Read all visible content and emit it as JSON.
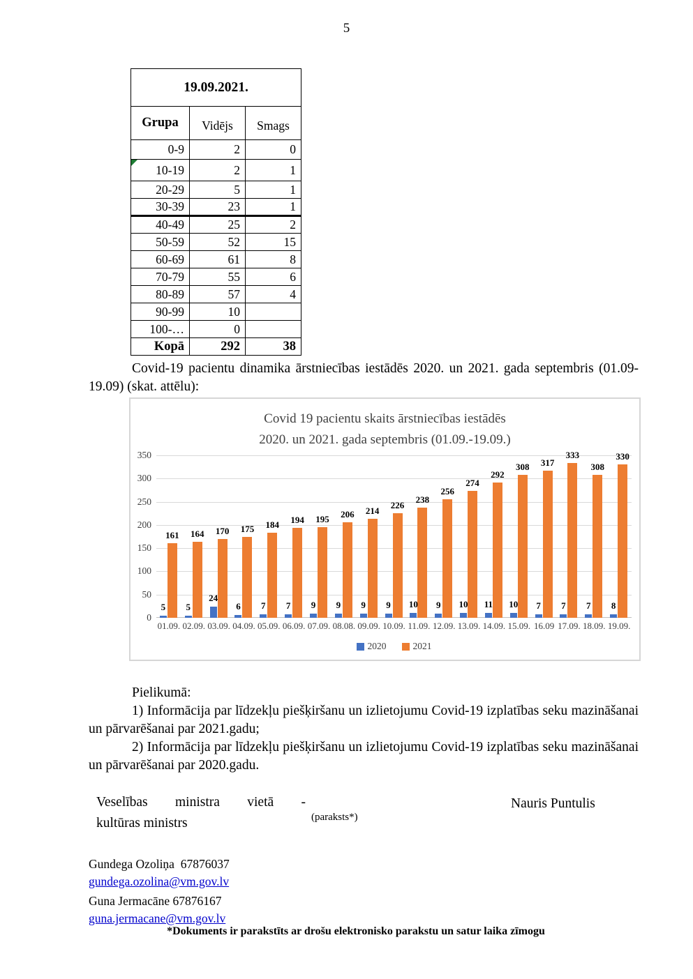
{
  "page": {
    "number": "5",
    "footer_note": "*Dokuments ir parakstīts ar drošu elektronisko parakstu un satur laika zīmogu"
  },
  "table": {
    "date_header": "19.09.2021.",
    "columns": [
      "Grupa",
      "Vidējs",
      "Smags"
    ],
    "rows": [
      {
        "group": "0-9",
        "videjs": "2",
        "smags": "0"
      },
      {
        "group": "10-19",
        "videjs": "2",
        "smags": "1"
      },
      {
        "group": "20-29",
        "videjs": "5",
        "smags": "1"
      },
      {
        "group": "30-39",
        "videjs": "23",
        "smags": "1"
      },
      {
        "group": "40-49",
        "videjs": "25",
        "smags": "2"
      },
      {
        "group": "50-59",
        "videjs": "52",
        "smags": "15"
      },
      {
        "group": "60-69",
        "videjs": "61",
        "smags": "8"
      },
      {
        "group": "70-79",
        "videjs": "55",
        "smags": "6"
      },
      {
        "group": "80-89",
        "videjs": "57",
        "smags": "4"
      },
      {
        "group": "90-99",
        "videjs": "10",
        "smags": ""
      },
      {
        "group": "100-…",
        "videjs": "0",
        "smags": ""
      }
    ],
    "total": {
      "group": "Kopā",
      "videjs": "292",
      "smags": "38"
    },
    "marker_row_index": 1,
    "thick_border_after_index": 3
  },
  "text": {
    "intro": "Covid-19 pacientu dinamika ārstniecības iestādēs 2020. un 2021. gada septembris (01.09-19.09) (skat. attēlu):",
    "appendix_title": "Pielikumā:",
    "item1": "1) Informācija par līdzekļu piešķiršanu un izlietojumu Covid-19 izplatības seku mazināšanai un pārvarēšanai par 2021.gadu;",
    "item2": "2) Informācija par līdzekļu piešķiršanu un izlietojumu Covid-19 izplatības seku mazināšanai un pārvarēšanai par 2020.gadu."
  },
  "signature": {
    "role_line1": "Veselības ministra vietā -",
    "role_line2": "kultūras ministrs",
    "paraksts_note": "(paraksts*)",
    "name": "Nauris Puntulis"
  },
  "contacts": {
    "person1_name": "Gundega Ozoliņa  67876037",
    "person1_email": "gundega.ozolina@vm.gov.lv",
    "person2_name": "Guna Jermacāne 67876167",
    "person2_email": "guna.jermacane@vm.gov.lv"
  },
  "chart_data": {
    "type": "bar",
    "title": "Covid 19 pacientu skaits ārstniecības iestādēs 2020. un 2021. gada septembris (01.09.-19.09.)",
    "title_lines": [
      "Covid 19 pacientu skaits ārstniecības iestādēs",
      "2020. un 2021. gada septembris (01.09.-19.09.)"
    ],
    "categories": [
      "01.09.",
      "02.09.",
      "03.09.",
      "04.09.",
      "05.09.",
      "06.09.",
      "07.09.",
      "08.08.",
      "09.09.",
      "10.09.",
      "11.09.",
      "12.09.",
      "13.09.",
      "14.09.",
      "15.09.",
      "16.09",
      "17.09.",
      "18.09.",
      "19.09."
    ],
    "series": [
      {
        "name": "2020",
        "color": "#4472C4",
        "values": [
          5,
          5,
          24,
          6,
          7,
          7,
          9,
          9,
          9,
          9,
          10,
          9,
          10,
          11,
          10,
          7,
          7,
          7,
          8
        ]
      },
      {
        "name": "2021",
        "color": "#ED7D31",
        "values": [
          161,
          164,
          170,
          175,
          184,
          194,
          195,
          206,
          214,
          226,
          238,
          256,
          274,
          292,
          308,
          317,
          333,
          308,
          330
        ]
      }
    ],
    "xlabel": "",
    "ylabel": "",
    "ylim": [
      0,
      350
    ],
    "yticks": [
      0,
      50,
      100,
      150,
      200,
      250,
      300,
      350
    ],
    "grid": true,
    "legend_position": "bottom",
    "data_labels": true
  }
}
